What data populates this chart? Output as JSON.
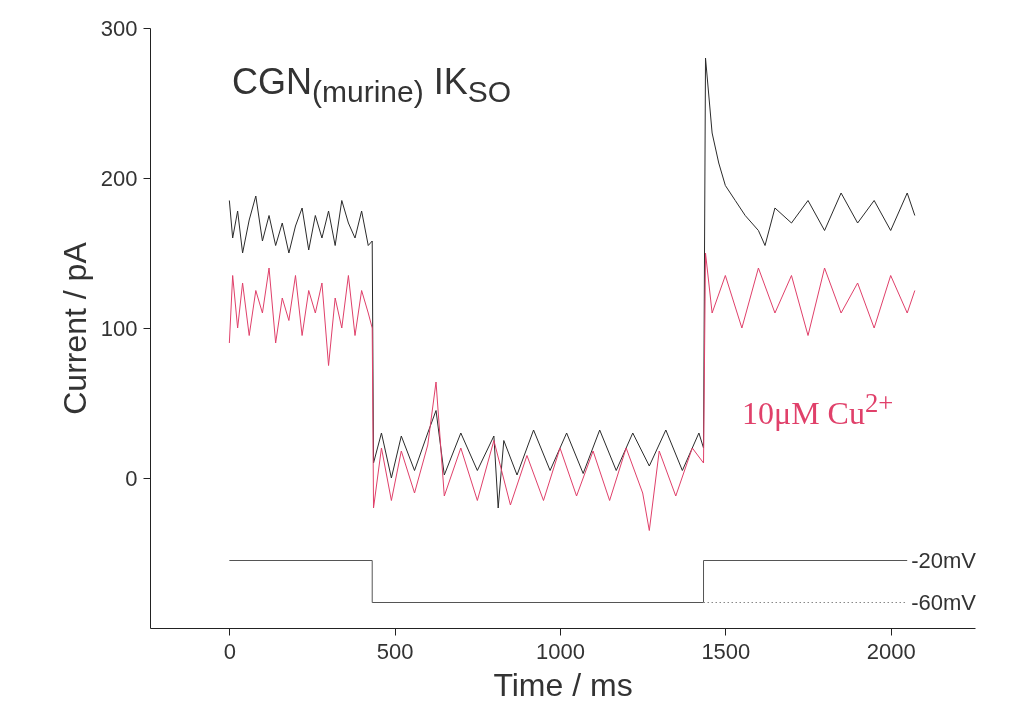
{
  "chart_data": {
    "type": "line",
    "title": "CGN$_{(murine)}$ IK$_{SO}$",
    "xlabel": "Time / ms",
    "ylabel": "Current / pA",
    "xlim": [
      -240,
      2255
    ],
    "ylim": [
      -100,
      300
    ],
    "xticks": [
      0,
      500,
      1000,
      1500,
      2000
    ],
    "yticks": [
      0,
      100,
      200,
      300
    ],
    "grid": false,
    "marker": "none",
    "annotations": [
      {
        "text": "-20mV",
        "x": 2050,
        "y": -55
      },
      {
        "text": "-60mV",
        "x": 2050,
        "y": -83
      }
    ],
    "series": [
      {
        "color": "#2b2b2b",
        "x": [
          0,
          10,
          25,
          40,
          60,
          80,
          100,
          120,
          140,
          160,
          180,
          200,
          220,
          240,
          260,
          280,
          300,
          320,
          340,
          360,
          380,
          400,
          420,
          432,
          436,
          460,
          490,
          520,
          560,
          600,
          625,
          650,
          700,
          750,
          800,
          813,
          830,
          870,
          920,
          970,
          1020,
          1070,
          1120,
          1170,
          1220,
          1270,
          1320,
          1370,
          1420,
          1434,
          1440,
          1460,
          1480,
          1500,
          1530,
          1560,
          1600,
          1620,
          1650,
          1700,
          1750,
          1800,
          1850,
          1900,
          1950,
          2000,
          2050,
          2073
        ],
        "values": [
          185,
          160,
          178,
          150,
          172,
          188,
          158,
          175,
          155,
          170,
          150,
          168,
          180,
          152,
          175,
          160,
          178,
          155,
          185,
          170,
          160,
          178,
          155,
          158,
          10,
          30,
          0,
          28,
          5,
          30,
          45,
          2,
          30,
          5,
          28,
          -20,
          25,
          2,
          32,
          5,
          30,
          3,
          32,
          5,
          30,
          8,
          32,
          5,
          30,
          20,
          280,
          230,
          210,
          195,
          185,
          175,
          165,
          155,
          180,
          170,
          185,
          165,
          190,
          170,
          185,
          165,
          190,
          175
        ]
      },
      {
        "name": "10μM Cu$^{2+}$",
        "color": "#e0406a",
        "x": [
          0,
          10,
          25,
          40,
          60,
          80,
          100,
          120,
          140,
          160,
          180,
          200,
          220,
          240,
          260,
          280,
          300,
          320,
          340,
          360,
          380,
          400,
          420,
          432,
          436,
          460,
          490,
          520,
          560,
          600,
          625,
          650,
          700,
          750,
          800,
          850,
          900,
          950,
          1000,
          1050,
          1100,
          1150,
          1200,
          1250,
          1270,
          1300,
          1350,
          1400,
          1434,
          1440,
          1460,
          1500,
          1550,
          1600,
          1650,
          1700,
          1750,
          1800,
          1850,
          1900,
          1950,
          2000,
          2050,
          2073
        ],
        "values": [
          90,
          135,
          100,
          130,
          95,
          125,
          110,
          140,
          90,
          120,
          105,
          135,
          95,
          125,
          110,
          130,
          75,
          120,
          100,
          135,
          95,
          125,
          110,
          100,
          -20,
          20,
          -15,
          18,
          -10,
          22,
          64,
          -12,
          20,
          -15,
          25,
          -18,
          15,
          -15,
          20,
          -12,
          18,
          -15,
          20,
          -10,
          -35,
          18,
          -12,
          20,
          10,
          150,
          110,
          135,
          100,
          140,
          110,
          135,
          95,
          140,
          110,
          130,
          100,
          135,
          110,
          125
        ]
      },
      {
        "color": "#555555",
        "x": [
          0,
          432,
          432,
          1434,
          1434,
          2050
        ],
        "values": [
          -55,
          -55,
          -83,
          -83,
          -55,
          -55
        ]
      },
      {
        "color": "#888888",
        "line_style": "dotted",
        "x": [
          1434,
          2050
        ],
        "values": [
          -83,
          -83
        ]
      }
    ]
  }
}
